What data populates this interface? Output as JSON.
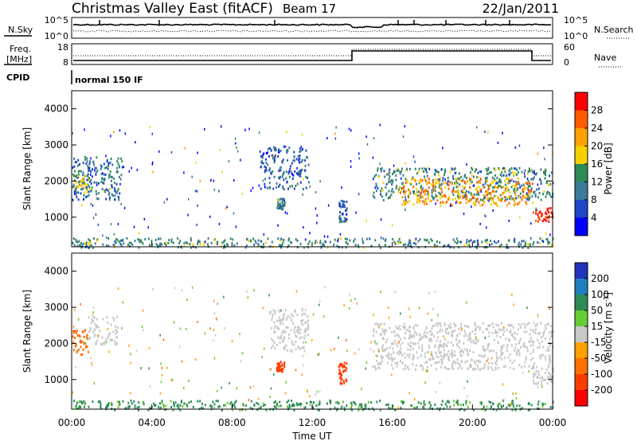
{
  "header": {
    "station": "Christmas Valley East (fitACF)",
    "beam": "Beam 17",
    "date": "22/Jan/2011"
  },
  "top_panels": {
    "nsky_label": "N.Sky",
    "nsky_ticks": [
      "10^5",
      "10^0"
    ],
    "nsearch_label": "N.Search",
    "nsearch_ticks": [
      "10^5",
      "10^0"
    ],
    "freq_label_1": "Freq.",
    "freq_label_2": "[MHz]",
    "freq_ticks": [
      "18",
      "8"
    ],
    "nave_label": "Nave",
    "nave_ticks": [
      "60",
      "0"
    ],
    "cpid_label": "CPID",
    "cpid_value": "normal 150 IF"
  },
  "colorbars": {
    "power": {
      "label": "Power [dB]",
      "ticks": [
        "28",
        "24",
        "20",
        "16",
        "12",
        "8",
        "4"
      ],
      "colors": [
        "#ff0000",
        "#ff5a00",
        "#ffa000",
        "#f5d000",
        "#2e8b57",
        "#3c7a9a",
        "#1e46c8",
        "#0000ff"
      ]
    },
    "velocity": {
      "label": "Velocity [m s^-1]",
      "ticks": [
        "200",
        "100",
        "50",
        "15",
        "-15",
        "-50",
        "-100",
        "-200"
      ],
      "colors": [
        "#2233bb",
        "#1f7fbf",
        "#2e8b57",
        "#66cc33",
        "#c8c8c8",
        "#ffa000",
        "#ff7000",
        "#ff3c00",
        "#ff0000"
      ]
    }
  },
  "chart_data": [
    {
      "type": "heatmap",
      "title": "Power",
      "ylabel": "Slant Range [km]",
      "ylim": [
        180,
        4500
      ],
      "yticks": [
        1000,
        2000,
        3000,
        4000
      ],
      "xlim": [
        0,
        24
      ],
      "xlabel": "",
      "colorbar_label": "Power [dB]",
      "regions": [
        {
          "t": [
            0.0,
            2.5
          ],
          "r": [
            1500,
            2700
          ],
          "v": 8
        },
        {
          "t": [
            0.1,
            0.9
          ],
          "r": [
            1700,
            2200
          ],
          "v": 14
        },
        {
          "t": [
            9.4,
            11.8
          ],
          "r": [
            1800,
            3000
          ],
          "v": 6
        },
        {
          "t": [
            10.2,
            10.6
          ],
          "r": [
            1250,
            1550
          ],
          "v": 10
        },
        {
          "t": [
            13.3,
            13.7
          ],
          "r": [
            900,
            1500
          ],
          "v": 6
        },
        {
          "t": [
            15.0,
            24.0
          ],
          "r": [
            1500,
            2400
          ],
          "v": 10
        },
        {
          "t": [
            16.3,
            23.0
          ],
          "r": [
            1350,
            2100
          ],
          "v": 20
        },
        {
          "t": [
            23.0,
            24.0
          ],
          "r": [
            900,
            1300
          ],
          "v": 28
        },
        {
          "t": [
            0.0,
            24.0
          ],
          "r": [
            180,
            450
          ],
          "v": 10
        }
      ]
    },
    {
      "type": "heatmap",
      "title": "Velocity",
      "ylabel": "Slant Range [km]",
      "ylim": [
        180,
        4500
      ],
      "yticks": [
        1000,
        2000,
        3000,
        4000
      ],
      "xlim": [
        0,
        24
      ],
      "xticks": [
        "00:00",
        "04:00",
        "08:00",
        "12:00",
        "16:00",
        "20:00",
        "00:00"
      ],
      "xlabel": "Time UT",
      "colorbar_label": "Velocity [m s^-1]",
      "regions": [
        {
          "t": [
            0.0,
            0.8
          ],
          "r": [
            1700,
            2400
          ],
          "v": -30
        },
        {
          "t": [
            0.8,
            2.3
          ],
          "r": [
            2000,
            2800
          ],
          "v": 0
        },
        {
          "t": [
            9.8,
            11.8
          ],
          "r": [
            1800,
            3000
          ],
          "v": 0
        },
        {
          "t": [
            10.2,
            10.6
          ],
          "r": [
            1250,
            1550
          ],
          "v": -50
        },
        {
          "t": [
            13.3,
            13.7
          ],
          "r": [
            900,
            1500
          ],
          "v": -50
        },
        {
          "t": [
            15.0,
            24.0
          ],
          "r": [
            1300,
            2600
          ],
          "v": 0
        },
        {
          "t": [
            23.0,
            24.0
          ],
          "r": [
            900,
            1300
          ],
          "v": 0
        },
        {
          "t": [
            0.0,
            24.0
          ],
          "r": [
            180,
            450
          ],
          "v": 20
        }
      ]
    }
  ]
}
